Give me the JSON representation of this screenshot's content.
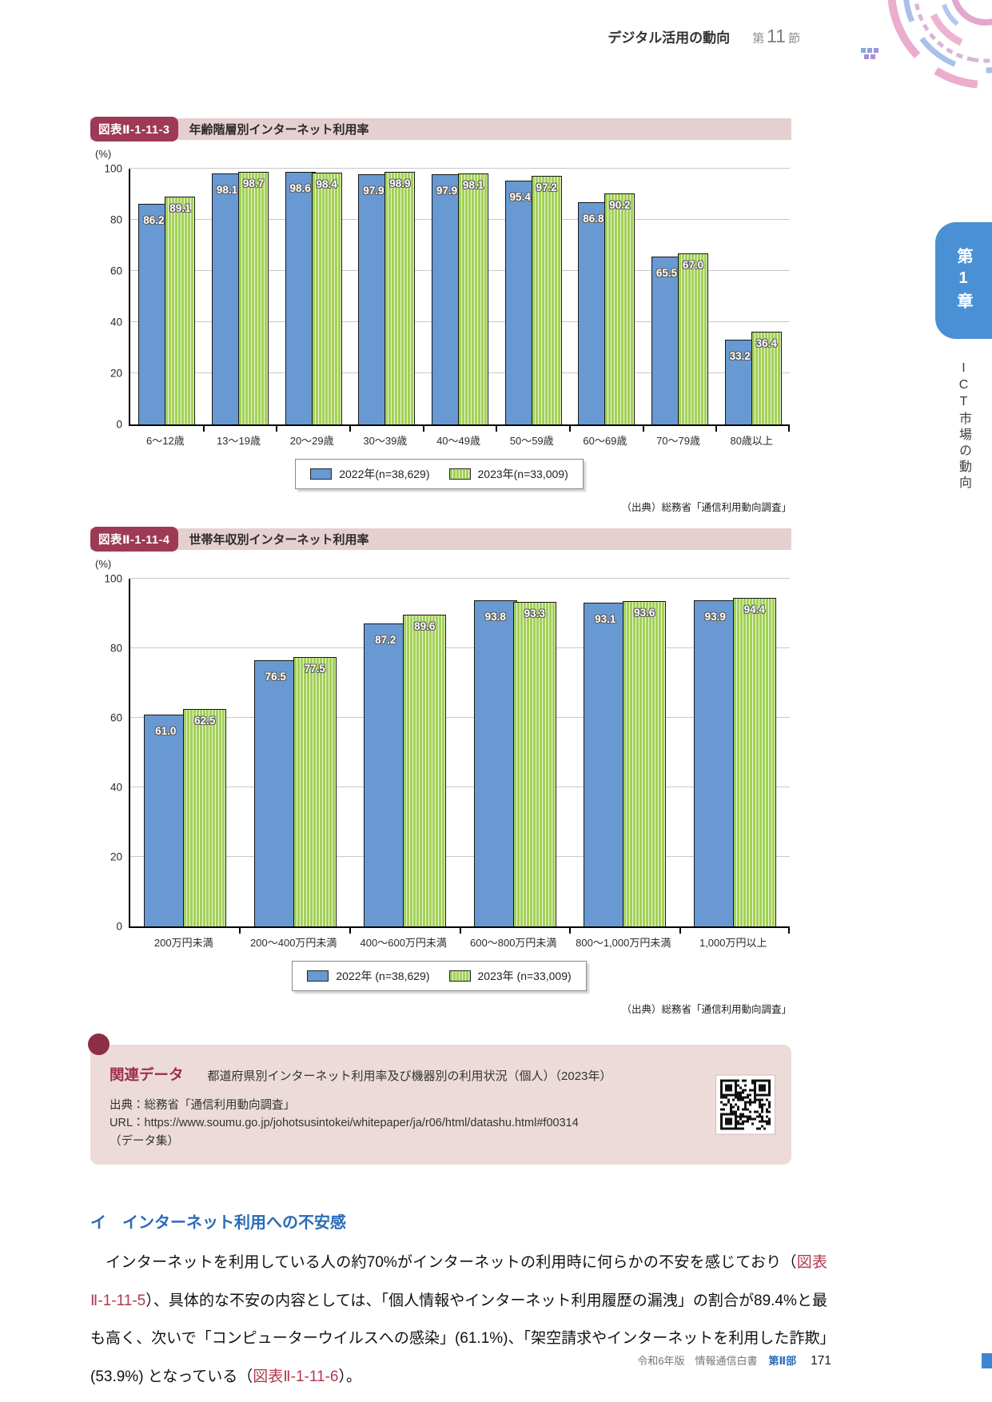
{
  "header": {
    "title": "デジタル活用の動向",
    "section_prefix": "第",
    "section_number": "11",
    "section_suffix": "節"
  },
  "sidebar": {
    "chapter": "第1章",
    "chapter_title": "ICT市場の動向"
  },
  "figures": [
    {
      "id": "図表Ⅱ-1-11-3",
      "title": "年齢階層別インターネット利用率",
      "unit_label": "(%)",
      "legend": [
        "2022年(n=38,629)",
        "2023年(n=33,009)"
      ],
      "source": "（出典）総務省「通信利用動向調査」",
      "chart_data": {
        "type": "bar",
        "categories": [
          "6～12歳",
          "13～19歳",
          "20～29歳",
          "30～39歳",
          "40～49歳",
          "50～59歳",
          "60～69歳",
          "70～79歳",
          "80歳以上"
        ],
        "series": [
          {
            "name": "2022年",
            "values": [
              86.2,
              98.1,
              98.6,
              97.9,
              97.9,
              95.4,
              86.8,
              65.5,
              33.2
            ]
          },
          {
            "name": "2023年",
            "values": [
              89.1,
              98.7,
              98.4,
              98.9,
              98.1,
              97.2,
              90.2,
              67.0,
              36.4
            ]
          }
        ],
        "ylim": [
          0,
          100
        ],
        "y_ticks": [
          0,
          20,
          40,
          60,
          80,
          100
        ],
        "grid": true,
        "legend_position": "bottom"
      }
    },
    {
      "id": "図表Ⅱ-1-11-4",
      "title": "世帯年収別インターネット利用率",
      "unit_label": "(%)",
      "legend": [
        "2022年 (n=38,629)",
        "2023年 (n=33,009)"
      ],
      "source": "（出典）総務省「通信利用動向調査」",
      "chart_data": {
        "type": "bar",
        "categories": [
          "200万円未満",
          "200～400万円未満",
          "400～600万円未満",
          "600～800万円未満",
          "800～1,000万円未満",
          "1,000万円以上"
        ],
        "series": [
          {
            "name": "2022年",
            "values": [
              61.0,
              76.5,
              87.2,
              93.8,
              93.1,
              93.9
            ]
          },
          {
            "name": "2023年",
            "values": [
              62.5,
              77.5,
              89.6,
              93.3,
              93.6,
              94.4
            ]
          }
        ],
        "ylim": [
          0,
          100
        ],
        "y_ticks": [
          0,
          20,
          40,
          60,
          80,
          100
        ],
        "grid": true,
        "legend_position": "bottom"
      }
    }
  ],
  "related": {
    "label": "関連データ",
    "title": "都道府県別インターネット利用率及び機器別の利用状況（個人）（2023年）",
    "source": "出典：総務省「通信利用動向調査」",
    "url": "URL：https://www.soumu.go.jp/johotsusintokei/whitepaper/ja/r06/html/datashu.html#f00314",
    "note": "（データ集）"
  },
  "body": {
    "heading": "イ　インターネット利用への不安感",
    "paragraph_runs": [
      {
        "text": "　インターネットを利用している人の約70%がインターネットの利用時に何らかの不安を感じており（"
      },
      {
        "ref": "図表Ⅱ-1-11-5"
      },
      {
        "text": "）、具体的な不安の内容としては、「個人情報やインターネット利用履歴の漏洩」の割合が89.4%と最も高く、次いで「コンピューターウイルスへの感染」(61.1%)、「架空請求やインターネットを利用した詐欺」(53.9%) となっている（"
      },
      {
        "ref": "図表Ⅱ-1-11-6"
      },
      {
        "text": "）。"
      }
    ]
  },
  "footer": {
    "edition": "令和6年版　情報通信白書",
    "part": "第Ⅱ部",
    "page_number": "171"
  },
  "colors": {
    "accent_red": "#9e3a55",
    "titlebar_pink": "#e6cfd0",
    "related_pink": "#ecdbd9",
    "bar_blue": "#6899d2",
    "bar_green": "#a3d158",
    "heading_blue": "#2a6bb8",
    "chapter_tab_blue": "#4a90d5"
  }
}
